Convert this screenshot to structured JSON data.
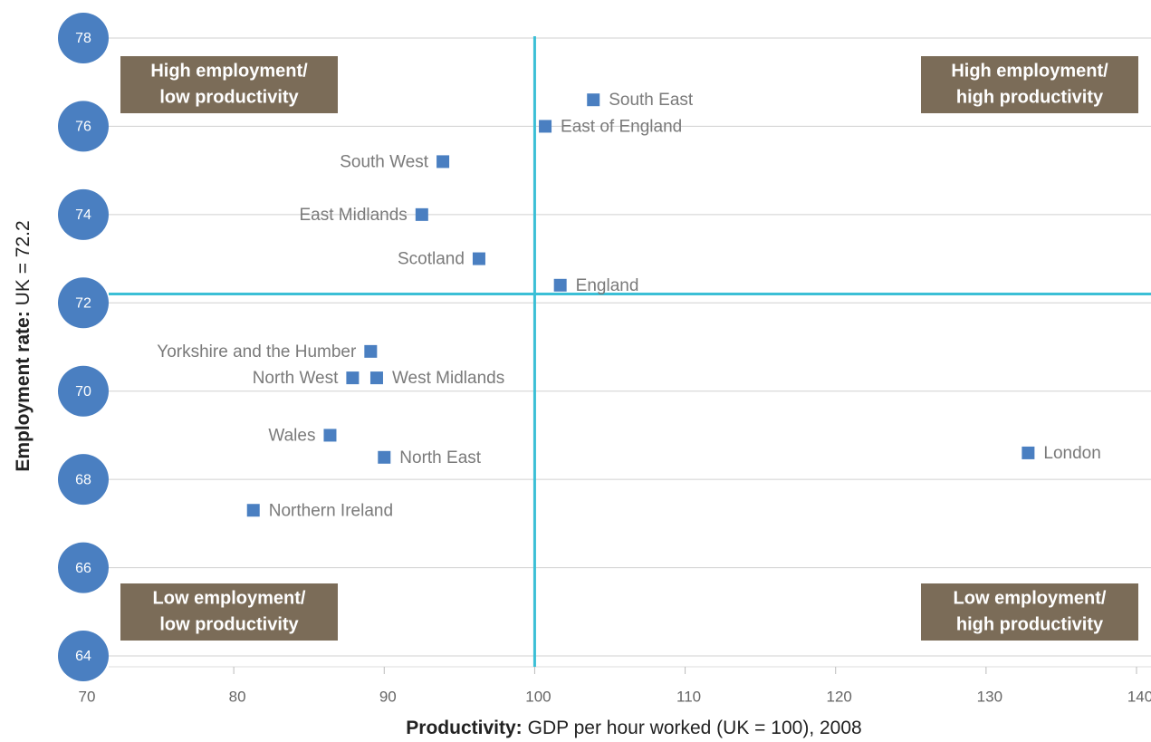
{
  "chart_data": {
    "type": "scatter",
    "labels": [
      "South East",
      "East of England",
      "South West",
      "East Midlands",
      "Scotland",
      "England",
      "Yorkshire and the Humber",
      "North West",
      "West Midlands",
      "Wales",
      "North East",
      "London",
      "Northern Ireland"
    ],
    "x": [
      103.9,
      100.7,
      93.9,
      92.5,
      96.3,
      101.7,
      89.1,
      87.9,
      89.5,
      86.4,
      90.0,
      132.8,
      81.3
    ],
    "values": [
      76.6,
      76.0,
      75.2,
      74.0,
      73.0,
      72.4,
      70.9,
      70.3,
      70.3,
      69.0,
      68.5,
      68.6,
      67.3
    ],
    "label_position": [
      "right",
      "right",
      "left",
      "left",
      "left",
      "right",
      "left",
      "left",
      "right",
      "left",
      "right",
      "right",
      "right"
    ],
    "color": "#4a7fc1",
    "xlim": [
      70,
      140
    ],
    "xticks": [
      70,
      80,
      90,
      100,
      110,
      120,
      130,
      140
    ],
    "ylim": [
      64,
      78
    ],
    "yticks": [
      64,
      66,
      68,
      70,
      72,
      74,
      76,
      78
    ],
    "grid": true,
    "reference_x": 100,
    "reference_y": 72.2,
    "reference_color": "#3bbfd6",
    "xlabel": {
      "bold": "Productivity:",
      "text": "GDP per hour worked (UK = 100), 2008"
    },
    "ylabel": {
      "bold": "Employment rate:",
      "text": "UK = 72.2"
    },
    "annotations": [
      {
        "lines": [
          "High employment/",
          "low productivity"
        ],
        "position": "top-left"
      },
      {
        "lines": [
          "High employment/",
          "high productivity"
        ],
        "position": "top-right"
      },
      {
        "lines": [
          "Low employment/",
          "low productivity"
        ],
        "position": "bottom-left"
      },
      {
        "lines": [
          "Low employment/",
          "high productivity"
        ],
        "position": "bottom-right"
      }
    ]
  }
}
